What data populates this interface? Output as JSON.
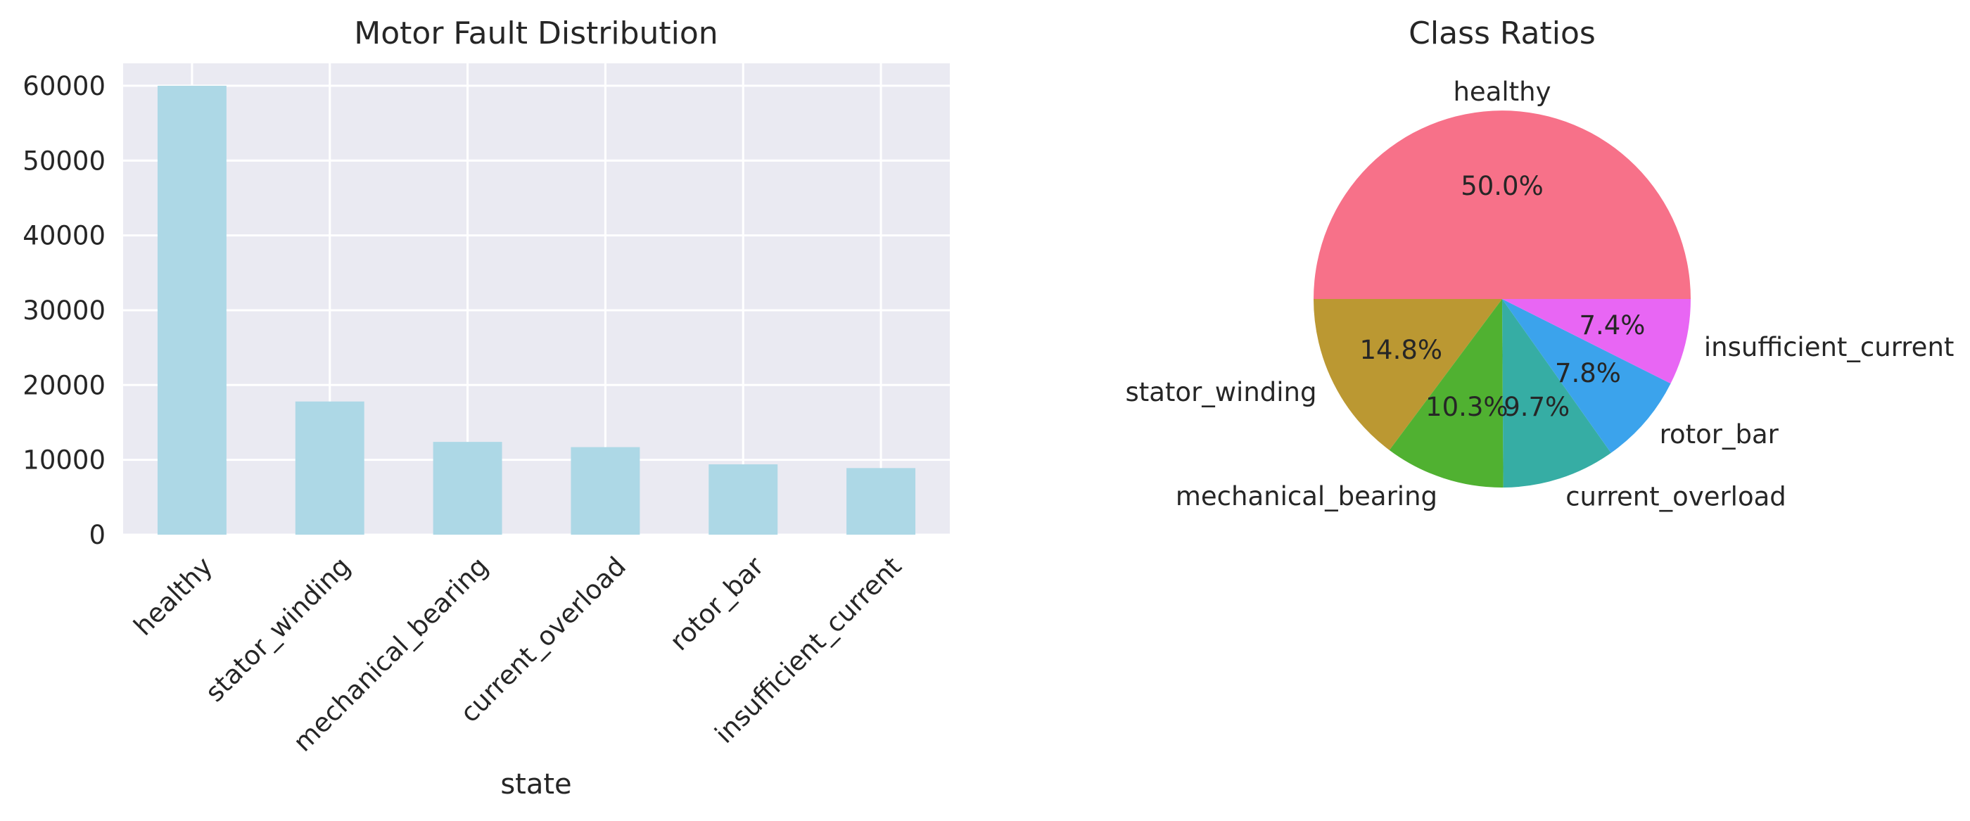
{
  "chart_data": [
    {
      "type": "bar",
      "title": "Motor Fault Distribution",
      "xlabel": "state",
      "ylabel": "",
      "categories": [
        "healthy",
        "stator_winding",
        "mechanical_bearing",
        "current_overload",
        "rotor_bar",
        "insufficient_current"
      ],
      "values": [
        60000,
        17800,
        12400,
        11700,
        9400,
        8900
      ],
      "ylim": [
        0,
        63000
      ],
      "yticks": [
        0,
        10000,
        20000,
        30000,
        40000,
        50000,
        60000
      ],
      "ytick_labels": [
        "0",
        "10000",
        "20000",
        "30000",
        "40000",
        "50000",
        "60000"
      ],
      "grid": true,
      "bar_color": "#add8e6",
      "plot_background": "#eaeaf2"
    },
    {
      "type": "pie",
      "title": "Class Ratios",
      "labels": [
        "healthy",
        "stator_winding",
        "mechanical_bearing",
        "current_overload",
        "rotor_bar",
        "insufficient_current"
      ],
      "values": [
        50.0,
        14.8,
        10.3,
        9.7,
        7.8,
        7.4
      ],
      "value_labels": [
        "50.0%",
        "14.8%",
        "10.3%",
        "9.7%",
        "7.8%",
        "7.4%"
      ],
      "colors": [
        "#f77189",
        "#bb9832",
        "#50b131",
        "#36ada4",
        "#3ba3ec",
        "#e866f4"
      ]
    }
  ]
}
